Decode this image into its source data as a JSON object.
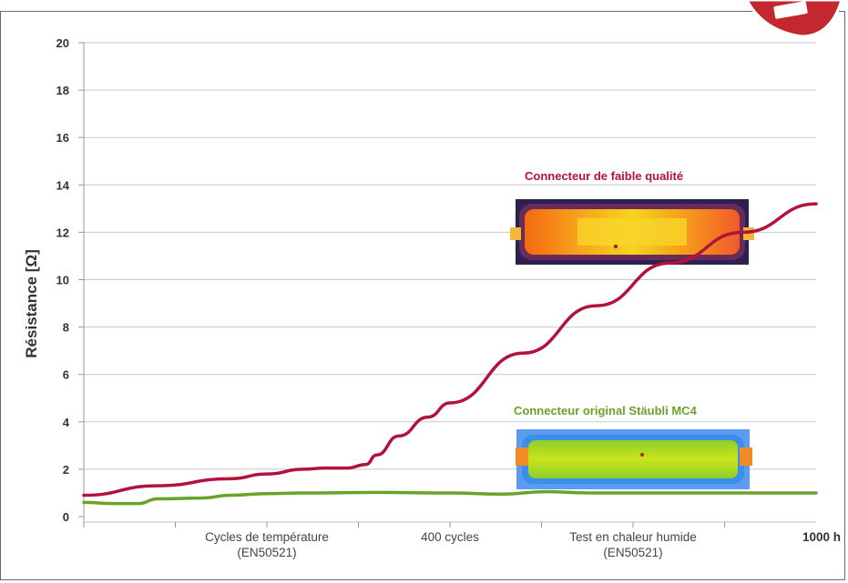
{
  "colors": {
    "low_quality": "#b3123a",
    "original": "#6aa22a",
    "grid": "#c8c8c8",
    "badge": "#c4272e"
  },
  "chart_data": {
    "type": "line",
    "ylabel": "Résistance [Ω]",
    "ylim": [
      0,
      20
    ],
    "yticks": [
      "0",
      "2",
      "4",
      "6",
      "8",
      "10",
      "12",
      "14",
      "16",
      "18",
      "20"
    ],
    "xlim": [
      0,
      1000
    ],
    "x_tick_labels": [
      {
        "x": 250,
        "lines": [
          "Cycles de température",
          "(EN50521)"
        ],
        "bold": false
      },
      {
        "x": 500,
        "lines": [
          "400 cycles"
        ],
        "bold": false
      },
      {
        "x": 750,
        "lines": [
          "Test en chaleur humide",
          "(EN50521)"
        ],
        "bold": false
      },
      {
        "x": 1000,
        "lines": [
          "1000 h"
        ],
        "bold": true
      }
    ],
    "series": [
      {
        "name": "Connecteur de faible qualité",
        "color": "#b3123a",
        "x": [
          0,
          100,
          200,
          250,
          300,
          330,
          360,
          385,
          400,
          430,
          470,
          500,
          600,
          700,
          800,
          900,
          1000
        ],
        "y": [
          0.9,
          1.3,
          1.6,
          1.8,
          2.0,
          2.05,
          2.05,
          2.2,
          2.6,
          3.4,
          4.2,
          4.8,
          6.9,
          8.9,
          10.7,
          12.0,
          13.2
        ]
      },
      {
        "name": "Connecteur original Stäubli MC4",
        "color": "#6aa22a",
        "x": [
          0,
          40,
          75,
          100,
          160,
          200,
          250,
          300,
          400,
          500,
          570,
          630,
          690,
          800,
          900,
          1000
        ],
        "y": [
          0.6,
          0.55,
          0.55,
          0.75,
          0.78,
          0.9,
          0.97,
          1.0,
          1.02,
          1.0,
          0.95,
          1.05,
          1.0,
          1.0,
          1.0,
          1.0
        ]
      }
    ],
    "annotations": [
      {
        "text": "Connecteur de faible qualité",
        "series": 0
      },
      {
        "text": "Connecteur original Stäubli MC4",
        "series": 1
      }
    ],
    "grid": true,
    "images": [
      "thermal-image-low-quality",
      "thermal-image-original"
    ]
  }
}
